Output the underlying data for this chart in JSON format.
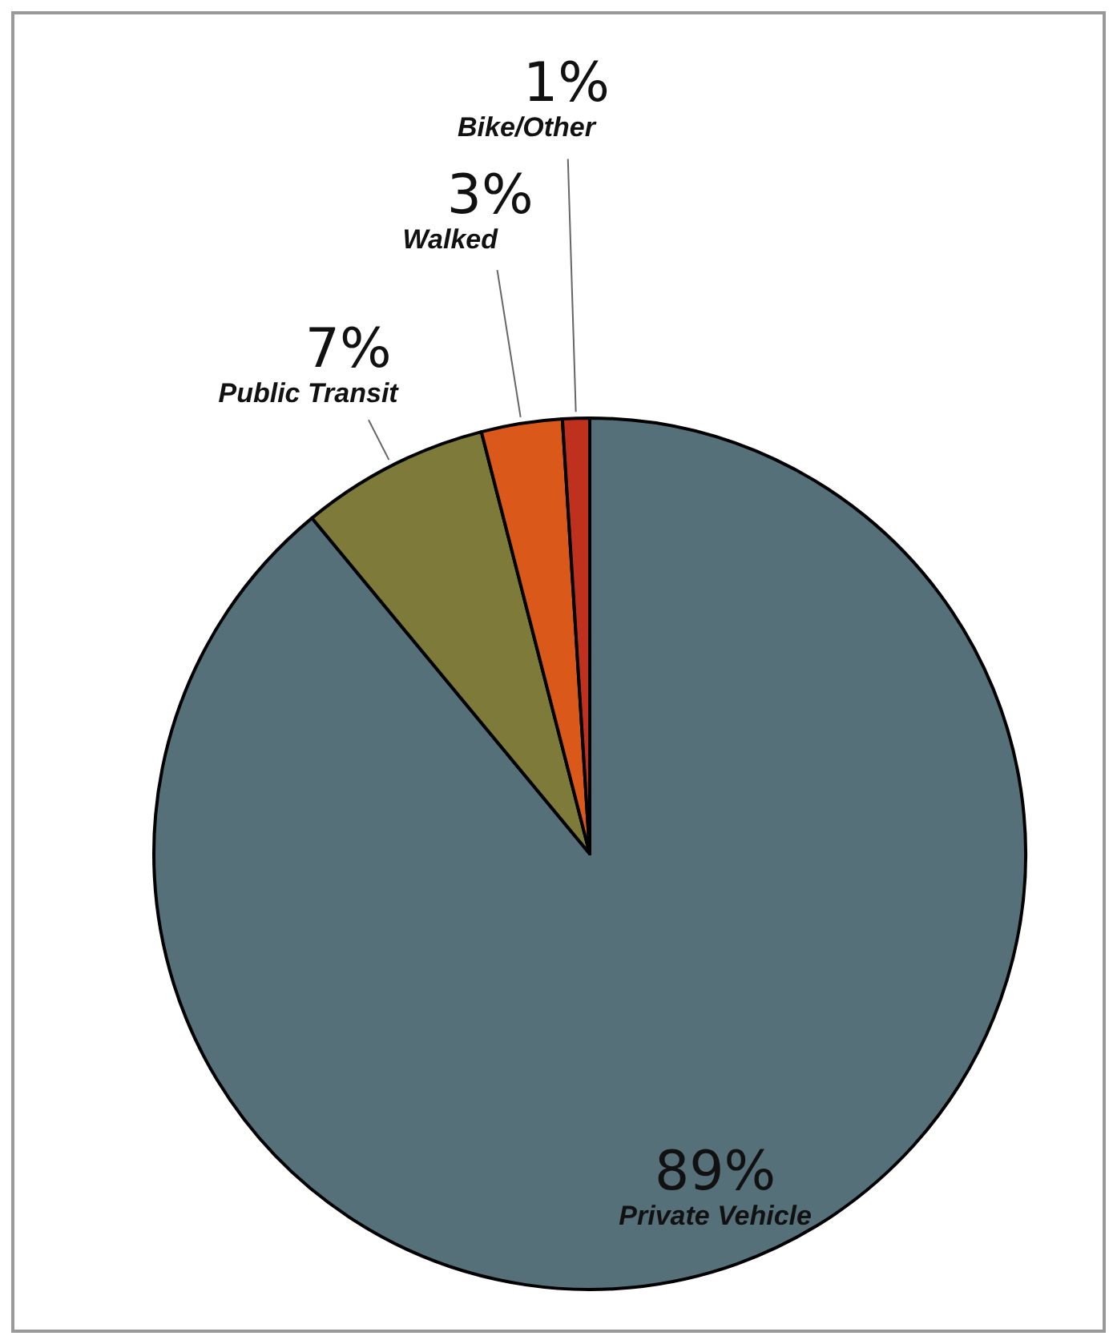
{
  "chart_data": {
    "type": "pie",
    "categories": [
      "Private Vehicle",
      "Public Transit",
      "Walked",
      "Bike/Other"
    ],
    "values": [
      89,
      7,
      3,
      1
    ],
    "colors": [
      "#56707a",
      "#7e7a3a",
      "#d9581a",
      "#c0301e"
    ],
    "value_labels": [
      "89%",
      "7%",
      "3%",
      "1%"
    ]
  }
}
